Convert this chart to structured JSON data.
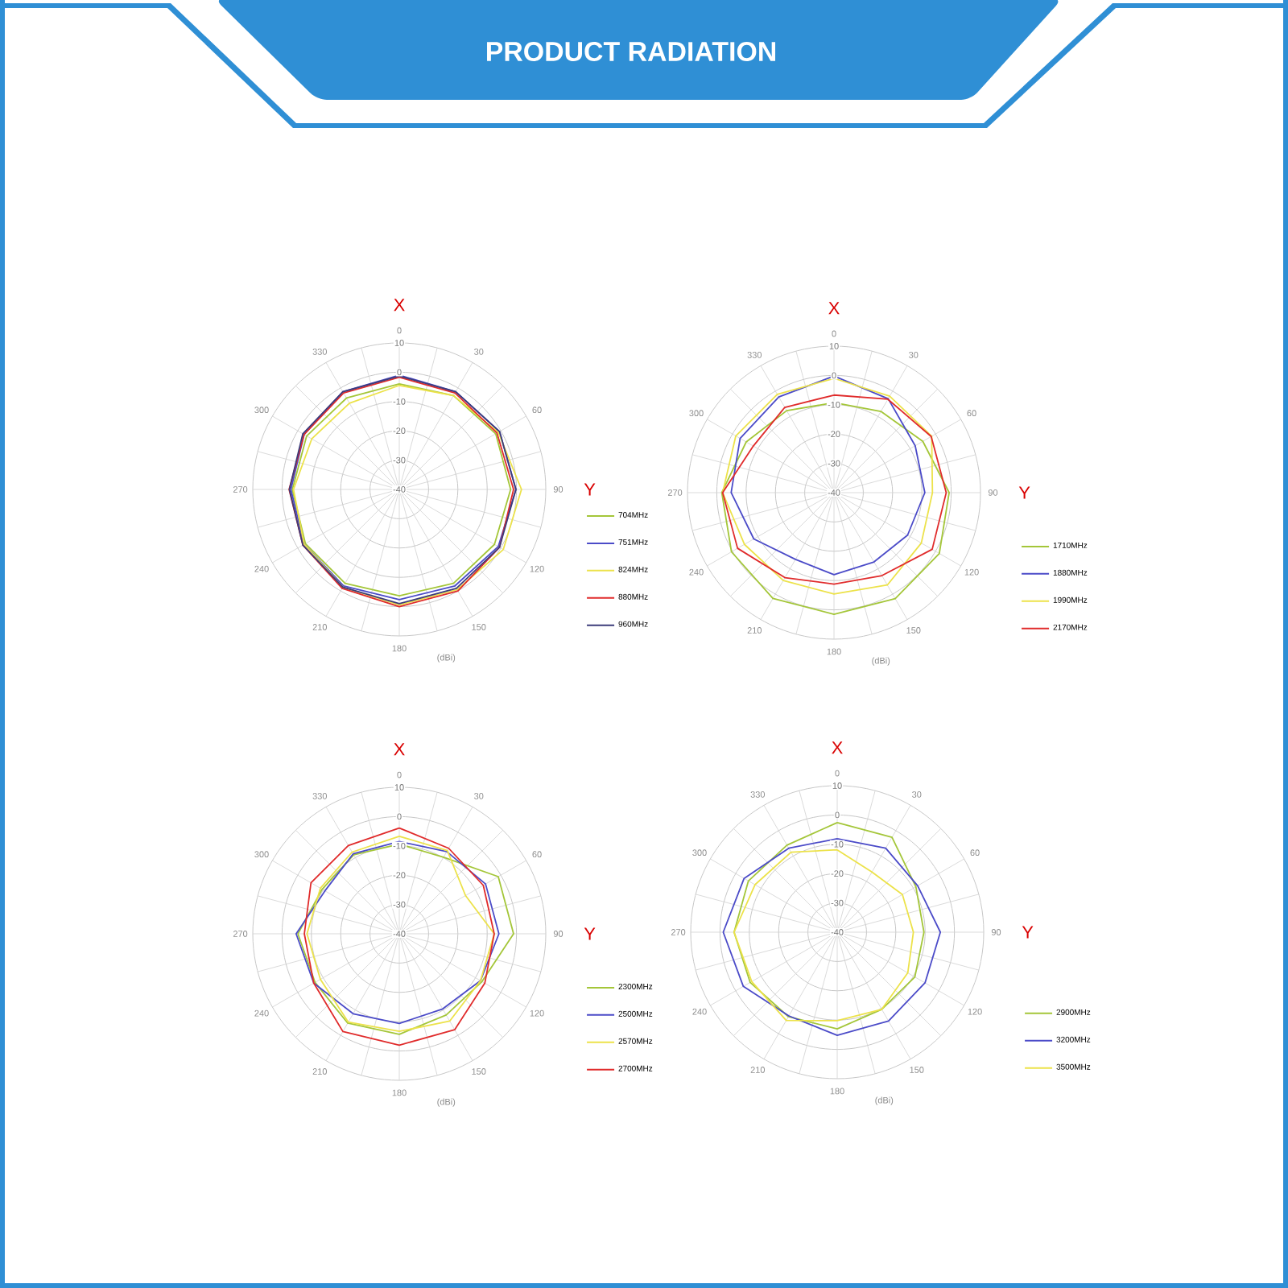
{
  "chart_data": [
    {
      "type": "radar",
      "title": "PRODUCT RADIATION",
      "ylabel": "(dBi)",
      "annotations": [
        "X",
        "Y"
      ],
      "categories": [
        "0",
        "30",
        "60",
        "90",
        "120",
        "150",
        "180",
        "210",
        "240",
        "270",
        "300",
        "330"
      ],
      "ylim": [
        -40,
        10
      ],
      "yticks": [
        -40,
        -30,
        -20,
        -10,
        0,
        10
      ],
      "legend": "right",
      "series": [
        {
          "name": "704MHz",
          "color": "#a4c639",
          "values": [
            -4,
            -3,
            -2,
            -2,
            -2.5,
            -3,
            -3.7,
            -3,
            -3,
            -3.5,
            -3.5,
            -4
          ]
        },
        {
          "name": "751MHz",
          "color": "#4b4bc8",
          "values": [
            -1,
            -1.5,
            -0.5,
            -0.2,
            -1,
            -2,
            -2.4,
            -2,
            -2.5,
            -3,
            -2.5,
            -1.5
          ]
        },
        {
          "name": "824MHz",
          "color": "#ece24a",
          "values": [
            -4.5,
            -3,
            -1,
            1.7,
            1,
            -0.5,
            -0.6,
            -1.5,
            -2.5,
            -3.9,
            -5.5,
            -6
          ]
        },
        {
          "name": "880MHz",
          "color": "#e02b2b",
          "values": [
            -1.7,
            -2,
            -1.5,
            -1,
            -0.5,
            0,
            0,
            -1,
            -2,
            -2.4,
            -2.5,
            -2
          ]
        },
        {
          "name": "960MHz",
          "color": "#3c3c7a",
          "values": [
            -1.3,
            -1.5,
            -0.5,
            -0.2,
            -0.5,
            -1,
            -1,
            -1.5,
            -2,
            -2.5,
            -2,
            -1.5
          ]
        }
      ]
    },
    {
      "type": "radar",
      "ylabel": "(dBi)",
      "annotations": [
        "X",
        "Y"
      ],
      "categories": [
        "0",
        "30",
        "60",
        "90",
        "120",
        "150",
        "180",
        "210",
        "240",
        "270",
        "300",
        "330"
      ],
      "ylim": [
        -40,
        10
      ],
      "yticks": [
        -40,
        -30,
        -20,
        -10,
        0,
        10
      ],
      "legend": "right",
      "series": [
        {
          "name": "1710MHz",
          "color": "#a4c639",
          "values": [
            -9.3,
            -8,
            -5,
            -0.7,
            1.5,
            1.8,
            1.5,
            1.7,
            0.4,
            -1.7,
            -5.4,
            -7.7
          ]
        },
        {
          "name": "1880MHz",
          "color": "#4b4bc8",
          "values": [
            -0.2,
            -3,
            -8,
            -9,
            -11,
            -12.7,
            -12,
            -13.7,
            -8.4,
            -4.9,
            -3,
            -2.3
          ]
        },
        {
          "name": "1990MHz",
          "color": "#ece24a",
          "values": [
            -1,
            -2,
            -1.5,
            -6.4,
            -5.6,
            -3.6,
            -5.4,
            -5.4,
            -4.7,
            -2,
            -1.3,
            -1.3
          ]
        },
        {
          "name": "2170MHz",
          "color": "#e02b2b",
          "values": [
            -6.7,
            -3.2,
            -1.7,
            -1.7,
            -1.3,
            -7.3,
            -8.8,
            -6.5,
            -2,
            -2,
            -8.2,
            -6.4
          ]
        }
      ]
    },
    {
      "type": "radar",
      "ylabel": "(dBi)",
      "annotations": [
        "X",
        "Y"
      ],
      "categories": [
        "0",
        "30",
        "60",
        "90",
        "120",
        "150",
        "180",
        "210",
        "240",
        "270",
        "300",
        "330"
      ],
      "ylim": [
        -40,
        10
      ],
      "yticks": [
        -40,
        -30,
        -20,
        -10,
        0,
        10
      ],
      "legend": "right",
      "series": [
        {
          "name": "2300MHz",
          "color": "#a4c639",
          "values": [
            -9.4,
            -9.8,
            -1,
            -1,
            -7.4,
            -8,
            -5.7,
            -4.8,
            -6.8,
            -5.4,
            -9.6,
            -8.9
          ]
        },
        {
          "name": "2500MHz",
          "color": "#4b4bc8",
          "values": [
            -8.5,
            -7.6,
            -6,
            -6,
            -8,
            -10.4,
            -9.4,
            -8.5,
            -6.3,
            -4.8,
            -10.7,
            -8.5
          ]
        },
        {
          "name": "2570MHz",
          "color": "#ece24a",
          "values": [
            -6.7,
            -7.2,
            -13.9,
            -7.6,
            -8,
            -5.6,
            -6.7,
            -5.2,
            -8.9,
            -8.5,
            -8.9,
            -7.8
          ]
        },
        {
          "name": "2700MHz",
          "color": "#e02b2b",
          "values": [
            -3.9,
            -6.3,
            -6.9,
            -7.6,
            -6.3,
            -2.2,
            -2,
            -1.5,
            -6.3,
            -7.6,
            -5.2,
            -5.2
          ]
        }
      ]
    },
    {
      "type": "radar",
      "ylabel": "(dBi)",
      "annotations": [
        "X",
        "Y"
      ],
      "categories": [
        "0",
        "30",
        "60",
        "90",
        "120",
        "150",
        "180",
        "210",
        "240",
        "270",
        "300",
        "330"
      ],
      "ylim": [
        -40,
        10
      ],
      "yticks": [
        -40,
        -30,
        -20,
        -10,
        0,
        10
      ],
      "legend": "right",
      "series": [
        {
          "name": "2900MHz",
          "color": "#a4c639",
          "values": [
            -2.6,
            -2.6,
            -9,
            -10.4,
            -9.4,
            -9.6,
            -7,
            -6.7,
            -5.7,
            -4.8,
            -5,
            -5.7
          ]
        },
        {
          "name": "3200MHz",
          "color": "#4b4bc8",
          "values": [
            -8.1,
            -6.9,
            -8.3,
            -4.8,
            -5.4,
            -5,
            -4.8,
            -7,
            -3,
            -1.1,
            -3.3,
            -6.9
          ]
        },
        {
          "name": "3500MHz",
          "color": "#ece24a",
          "values": [
            -11.9,
            -16.3,
            -14.3,
            -14,
            -12.2,
            -9.6,
            -9.8,
            -5.2,
            -6.3,
            -4.8,
            -7.6,
            -8.5
          ]
        }
      ]
    }
  ]
}
